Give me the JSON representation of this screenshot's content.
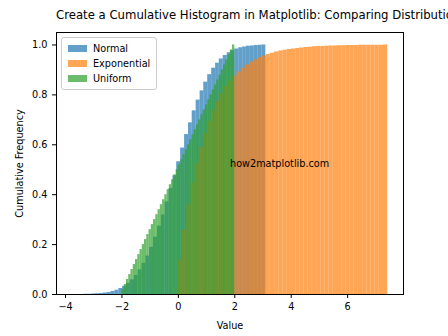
{
  "chart_data": {
    "type": "histogram",
    "title": "Create a Cumulative Histogram in Matplotlib: Comparing Distributions",
    "x_label": "Value",
    "y_label": "Cumulative Frequency",
    "xlim": [
      -4.32,
      7.98
    ],
    "ylim": [
      0,
      1.05
    ],
    "xticks": [
      -4,
      -2,
      0,
      2,
      4,
      6
    ],
    "yticks": [
      {
        "value": 0,
        "label": "0.0"
      },
      {
        "value": 0.2,
        "label": "0.2"
      },
      {
        "value": 0.4,
        "label": "0.4"
      },
      {
        "value": 0.6,
        "label": "0.6"
      },
      {
        "value": 0.8,
        "label": "0.8"
      },
      {
        "value": 1.0,
        "label": "1.0"
      }
    ],
    "legend": "upper left",
    "annotations": [
      {
        "text": "how2matplotlib.com"
      }
    ],
    "series": [
      {
        "name": "Normal",
        "color": "#1f77b4",
        "bins": [
          -3.76,
          -3.62,
          -3.49,
          -3.35,
          -3.21,
          -3.07,
          -2.94,
          -2.8,
          -2.66,
          -2.53,
          -2.39,
          -2.25,
          -2.11,
          -1.98,
          -1.84,
          -1.7,
          -1.56,
          -1.43,
          -1.29,
          -1.15,
          -1.02,
          -0.88,
          -0.74,
          -0.6,
          -0.47,
          -0.33,
          -0.19,
          -0.06,
          0.08,
          0.22,
          0.36,
          0.49,
          0.63,
          0.77,
          0.9,
          1.04,
          1.18,
          1.32,
          1.45,
          1.59,
          1.73,
          1.86,
          2.0,
          2.14,
          2.28,
          2.41,
          2.55,
          2.69,
          2.83,
          2.96,
          3.1
        ],
        "values": [
          0.0,
          0.0,
          0.0,
          0.001,
          0.001,
          0.002,
          0.003,
          0.004,
          0.006,
          0.008,
          0.012,
          0.017,
          0.024,
          0.033,
          0.045,
          0.059,
          0.076,
          0.099,
          0.125,
          0.154,
          0.189,
          0.23,
          0.274,
          0.319,
          0.371,
          0.425,
          0.476,
          0.532,
          0.587,
          0.641,
          0.688,
          0.736,
          0.779,
          0.816,
          0.851,
          0.881,
          0.907,
          0.927,
          0.944,
          0.958,
          0.969,
          0.977,
          0.984,
          0.989,
          0.992,
          0.995,
          0.996,
          0.998,
          0.999,
          1.0
        ]
      },
      {
        "name": "Exponential",
        "color": "#ff7f0e",
        "bins": [
          0,
          0.15,
          0.3,
          0.45,
          0.59,
          0.74,
          0.89,
          1.04,
          1.19,
          1.34,
          1.48,
          1.63,
          1.78,
          1.93,
          2.08,
          2.23,
          2.37,
          2.52,
          2.67,
          2.82,
          2.97,
          3.12,
          3.26,
          3.41,
          3.56,
          3.71,
          3.86,
          4.01,
          4.16,
          4.3,
          4.45,
          4.6,
          4.75,
          4.9,
          5.05,
          5.19,
          5.34,
          5.49,
          5.64,
          5.79,
          5.94,
          6.08,
          6.23,
          6.38,
          6.53,
          6.68,
          6.83,
          6.97,
          7.12,
          7.27,
          7.42
        ],
        "values": [
          0.138,
          0.257,
          0.359,
          0.448,
          0.524,
          0.589,
          0.646,
          0.695,
          0.737,
          0.773,
          0.805,
          0.832,
          0.855,
          0.875,
          0.892,
          0.907,
          0.92,
          0.931,
          0.94,
          0.949,
          0.956,
          0.962,
          0.967,
          0.972,
          0.976,
          0.979,
          0.982,
          0.984,
          0.986,
          0.988,
          0.99,
          0.991,
          0.993,
          0.994,
          0.994,
          0.995,
          0.996,
          0.996,
          0.997,
          0.997,
          0.998,
          0.998,
          0.998,
          0.999,
          0.999,
          0.999,
          0.999,
          0.999,
          0.999,
          1.0
        ]
      },
      {
        "name": "Uniform",
        "color": "#2ca02c",
        "bins": [
          -2.0,
          -1.92,
          -1.84,
          -1.76,
          -1.68,
          -1.6,
          -1.52,
          -1.44,
          -1.36,
          -1.28,
          -1.2,
          -1.12,
          -1.04,
          -0.96,
          -0.88,
          -0.8,
          -0.72,
          -0.64,
          -0.56,
          -0.48,
          -0.4,
          -0.32,
          -0.24,
          -0.16,
          -0.08,
          0.0,
          0.08,
          0.16,
          0.24,
          0.32,
          0.4,
          0.48,
          0.56,
          0.64,
          0.72,
          0.8,
          0.88,
          0.96,
          1.04,
          1.12,
          1.2,
          1.28,
          1.36,
          1.44,
          1.52,
          1.6,
          1.68,
          1.76,
          1.84,
          1.92,
          2.0
        ],
        "values": [
          0.02,
          0.04,
          0.06,
          0.08,
          0.1,
          0.12,
          0.14,
          0.16,
          0.18,
          0.2,
          0.22,
          0.24,
          0.26,
          0.28,
          0.3,
          0.32,
          0.34,
          0.36,
          0.38,
          0.4,
          0.42,
          0.44,
          0.46,
          0.48,
          0.5,
          0.52,
          0.54,
          0.56,
          0.58,
          0.6,
          0.62,
          0.64,
          0.66,
          0.68,
          0.7,
          0.72,
          0.74,
          0.76,
          0.78,
          0.8,
          0.82,
          0.84,
          0.86,
          0.88,
          0.9,
          0.92,
          0.94,
          0.96,
          0.98,
          1.0
        ]
      }
    ]
  }
}
